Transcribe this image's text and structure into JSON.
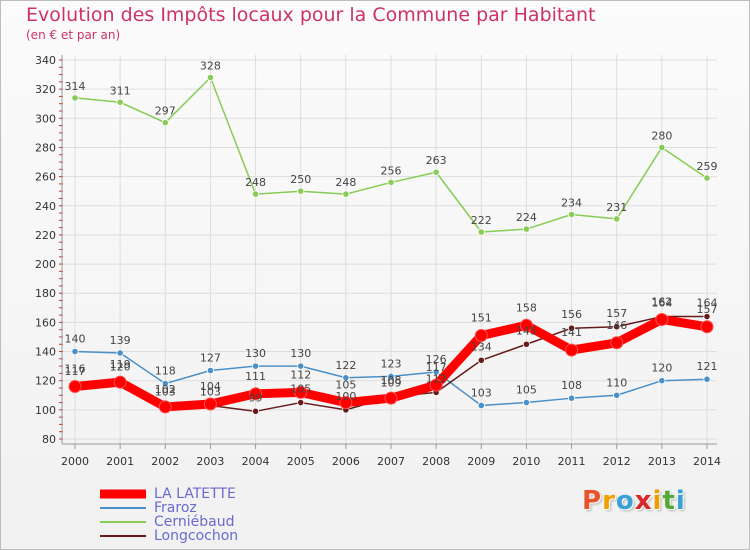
{
  "header": {
    "title": "Evolution des Impôts locaux pour la Commune par Habitant",
    "subtitle": "(en € et par an)"
  },
  "logo": {
    "text": "Proxiti",
    "colors": [
      "#e8542a",
      "#f0a000",
      "#3aa0d8",
      "#d8262a",
      "#e8a000",
      "#58a838",
      "#3aa0d8"
    ]
  },
  "chart_data": {
    "type": "line",
    "x": [
      "2000",
      "2001",
      "2002",
      "2003",
      "2004",
      "2005",
      "2006",
      "2007",
      "2008",
      "2009",
      "2010",
      "2011",
      "2012",
      "2013",
      "2014"
    ],
    "ylim": [
      80,
      340
    ],
    "yticks": [
      80,
      100,
      120,
      140,
      160,
      180,
      200,
      220,
      240,
      260,
      280,
      300,
      320,
      340
    ],
    "grid": true,
    "legend_position": "bottom-left",
    "series": [
      {
        "name": "LA LATETTE",
        "color": "#ff0000",
        "values": [
          116,
          119,
          102,
          104,
          111,
          112,
          105,
          108,
          117,
          151,
          158,
          141,
          146,
          162,
          157
        ]
      },
      {
        "name": "Fraroz",
        "color": "#4a90c8",
        "values": [
          140,
          139,
          118,
          127,
          130,
          130,
          122,
          123,
          126,
          103,
          105,
          108,
          110,
          120,
          121
        ]
      },
      {
        "name": "Cerniébaud",
        "color": "#88cc55",
        "values": [
          314,
          311,
          297,
          328,
          248,
          250,
          248,
          256,
          263,
          222,
          224,
          234,
          231,
          280,
          259
        ]
      },
      {
        "name": "Longcochon",
        "color": "#661a1a",
        "values": [
          117,
          120,
          103,
          103,
          99,
          105,
          100,
          109,
          112,
          134,
          145,
          156,
          157,
          164,
          164
        ]
      }
    ]
  }
}
